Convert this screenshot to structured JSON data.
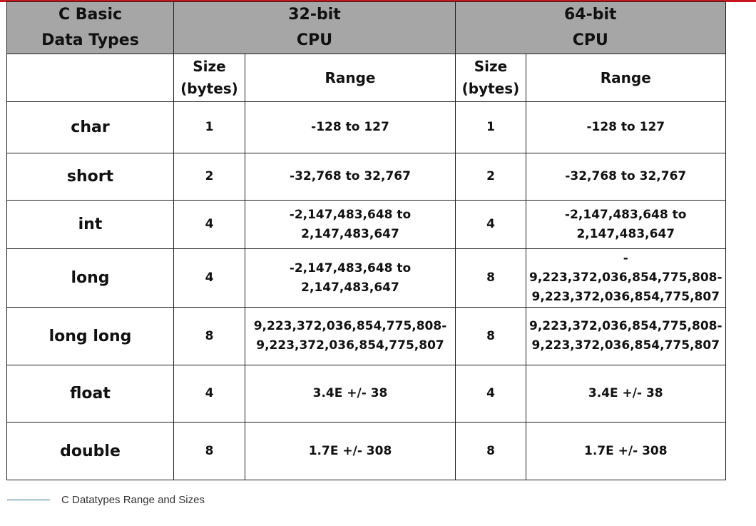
{
  "header": {
    "type_col": [
      "C Basic",
      "Data Types"
    ],
    "cpu32": [
      "32-bit",
      "CPU"
    ],
    "cpu64": [
      "64-bit",
      "CPU"
    ],
    "size": [
      "Size",
      "(bytes)"
    ],
    "range": "Range"
  },
  "rows": [
    {
      "type": "char",
      "size32": "1",
      "range32": [
        "-128 to 127"
      ],
      "size64": "1",
      "range64": [
        "-128 to 127"
      ]
    },
    {
      "type": "short",
      "size32": "2",
      "range32": [
        "-32,768 to 32,767"
      ],
      "size64": "2",
      "range64": [
        "-32,768 to 32,767"
      ]
    },
    {
      "type": "int",
      "size32": "4",
      "range32": [
        "-2,147,483,648 to",
        "2,147,483,647"
      ],
      "size64": "4",
      "range64": [
        "-2,147,483,648 to",
        "2,147,483,647"
      ]
    },
    {
      "type": "long",
      "size32": "4",
      "range32": [
        "-2,147,483,648 to",
        "2,147,483,647"
      ],
      "size64": "8",
      "range64": [
        "-",
        "9,223,372,036,854,775,808-",
        "9,223,372,036,854,775,807"
      ]
    },
    {
      "type": "long long",
      "size32": "8",
      "range32": [
        "9,223,372,036,854,775,808-",
        "9,223,372,036,854,775,807"
      ],
      "size64": "8",
      "range64": [
        "9,223,372,036,854,775,808-",
        "9,223,372,036,854,775,807"
      ]
    },
    {
      "type": "float",
      "size32": "4",
      "range32": [
        "3.4E +/- 38"
      ],
      "size64": "4",
      "range64": [
        "3.4E +/- 38"
      ]
    },
    {
      "type": "double",
      "size32": "8",
      "range32": [
        "1.7E +/- 308"
      ],
      "size64": "8",
      "range64": [
        "1.7E +/- 308"
      ]
    }
  ],
  "caption": "C Datatypes Range and Sizes",
  "colors": {
    "header_bg": "#a6a6a6",
    "top_rule": "#c4161c",
    "caption_rule": "#2a6d8f"
  }
}
